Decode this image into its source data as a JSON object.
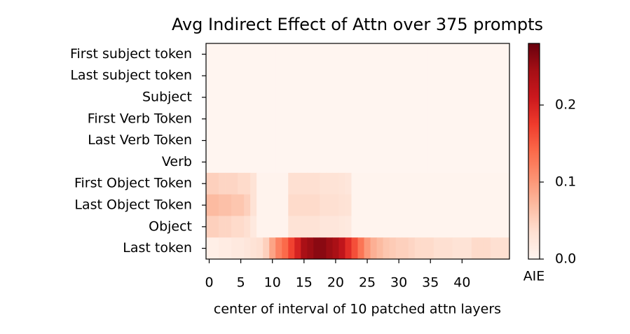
{
  "chart_data": {
    "type": "heatmap",
    "title": "Avg Indirect Effect of Attn over 375 prompts",
    "x_label": "center of interval of 10 patched attn layers",
    "colorbar_label": "AIE",
    "rows": [
      "First subject token",
      "Last subject token",
      "Subject",
      "First Verb Token",
      "Last Verb Token",
      "Verb",
      "First Object Token",
      "Last Object Token",
      "Object",
      "Last token"
    ],
    "xlim": [
      -0.5,
      47.5
    ],
    "xticks": [
      0,
      5,
      10,
      15,
      20,
      25,
      30,
      35,
      40
    ],
    "zlim": [
      0,
      0.28
    ],
    "zticks": [
      {
        "value": 0,
        "label": "0.0"
      },
      {
        "value": 0.1,
        "label": "0.1"
      },
      {
        "value": 0.2,
        "label": "0.2"
      }
    ],
    "colorscale": [
      "#fff5f0",
      "#fee0d2",
      "#fcbba1",
      "#fc9272",
      "#fb6a4a",
      "#ef3b2c",
      "#cb181d",
      "#a50f15",
      "#67000d"
    ],
    "z": [
      [
        0,
        0,
        0,
        0,
        0,
        0,
        0,
        0,
        0,
        0,
        0,
        0,
        0,
        0,
        0,
        0,
        0,
        0,
        0,
        0,
        0,
        0,
        0,
        0,
        0,
        0,
        0,
        0,
        0,
        0,
        0,
        0,
        0,
        0,
        0,
        0,
        0,
        0,
        0,
        0,
        0,
        0,
        0,
        0,
        0,
        0,
        0,
        0
      ],
      [
        0,
        0,
        0,
        0,
        0,
        0,
        0,
        0,
        0,
        0,
        0,
        0,
        0,
        0,
        0,
        0,
        0,
        0,
        0,
        0,
        0,
        0,
        0,
        0,
        0,
        0,
        0,
        0,
        0,
        0,
        0,
        0,
        0,
        0,
        0,
        0,
        0,
        0,
        0,
        0,
        0,
        0,
        0,
        0,
        0,
        0,
        0,
        0
      ],
      [
        0,
        0,
        0,
        0,
        0,
        0,
        0,
        0,
        0,
        0,
        0,
        0,
        0,
        0,
        0,
        0,
        0,
        0,
        0,
        0,
        0,
        0,
        0,
        0,
        0,
        0,
        0,
        0,
        0,
        0,
        0,
        0,
        0,
        0,
        0,
        0,
        0,
        0,
        0,
        0,
        0,
        0,
        0,
        0,
        0,
        0,
        0,
        0
      ],
      [
        0,
        0,
        0,
        0,
        0,
        0,
        0,
        0,
        0,
        0,
        0,
        0,
        0,
        0,
        0,
        0,
        0,
        0,
        0,
        0,
        0,
        0,
        0,
        0,
        0,
        0,
        0,
        0,
        0,
        0,
        0,
        0,
        0,
        0,
        0,
        0,
        0,
        0,
        0,
        0,
        0,
        0,
        0,
        0,
        0,
        0,
        0,
        0
      ],
      [
        0,
        0,
        0,
        0,
        0,
        0,
        0,
        0,
        0,
        0,
        0,
        0,
        0,
        0,
        0,
        0,
        0,
        0,
        0,
        0,
        0,
        0,
        0,
        0,
        0,
        0,
        0,
        0,
        0,
        0,
        0,
        0,
        0,
        0,
        0,
        0,
        0,
        0,
        0,
        0,
        0,
        0,
        0,
        0,
        0,
        0,
        0,
        0
      ],
      [
        0,
        0,
        0,
        0,
        0,
        0,
        0,
        0,
        0,
        0,
        0,
        0,
        0,
        0,
        0,
        0,
        0,
        0,
        0,
        0,
        0,
        0,
        0,
        0,
        0,
        0,
        0,
        0,
        0,
        0,
        0,
        0,
        0,
        0,
        0,
        0,
        0,
        0,
        0,
        0,
        0,
        0,
        0,
        0,
        0,
        0,
        0,
        0
      ],
      [
        0.05,
        0.05,
        0.045,
        0.045,
        0.045,
        0.04,
        0.04,
        0.03,
        0.003,
        0.003,
        0.003,
        0.003,
        0.003,
        0.035,
        0.035,
        0.035,
        0.035,
        0.035,
        0.03,
        0.03,
        0.03,
        0.028,
        0.025,
        0.002,
        0.002,
        0.002,
        0.002,
        0.002,
        0.002,
        0.002,
        0.002,
        0.002,
        0.002,
        0.002,
        0.002,
        0.002,
        0.002,
        0.002,
        0.002,
        0.002,
        0.002,
        0.002,
        0.002,
        0.002,
        0.002,
        0.002,
        0.002,
        0.002
      ],
      [
        0.07,
        0.07,
        0.065,
        0.065,
        0.06,
        0.06,
        0.05,
        0.03,
        0.003,
        0.003,
        0.003,
        0.003,
        0.003,
        0.04,
        0.04,
        0.04,
        0.04,
        0.04,
        0.035,
        0.035,
        0.035,
        0.032,
        0.03,
        0.002,
        0.002,
        0.002,
        0.002,
        0.002,
        0.002,
        0.002,
        0.002,
        0.002,
        0.002,
        0.002,
        0.002,
        0.002,
        0.002,
        0.002,
        0.002,
        0.002,
        0.002,
        0.002,
        0.002,
        0.002,
        0.002,
        0.002,
        0.002,
        0.002
      ],
      [
        0.05,
        0.05,
        0.045,
        0.045,
        0.04,
        0.04,
        0.035,
        0.02,
        0.003,
        0.003,
        0.003,
        0.003,
        0.003,
        0.03,
        0.03,
        0.03,
        0.03,
        0.03,
        0.025,
        0.025,
        0.025,
        0.022,
        0.02,
        0.002,
        0.002,
        0.002,
        0.002,
        0.002,
        0.002,
        0.002,
        0.002,
        0.002,
        0.002,
        0.002,
        0.002,
        0.002,
        0.002,
        0.002,
        0.002,
        0.002,
        0.002,
        0.002,
        0.002,
        0.002,
        0.002,
        0.002,
        0.002,
        0.002
      ],
      [
        0.01,
        0.01,
        0.015,
        0.015,
        0.02,
        0.02,
        0.025,
        0.03,
        0.035,
        0.05,
        0.09,
        0.12,
        0.14,
        0.17,
        0.2,
        0.24,
        0.25,
        0.26,
        0.26,
        0.25,
        0.24,
        0.22,
        0.19,
        0.16,
        0.13,
        0.1,
        0.08,
        0.07,
        0.06,
        0.055,
        0.05,
        0.05,
        0.045,
        0.04,
        0.04,
        0.04,
        0.035,
        0.035,
        0.035,
        0.03,
        0.03,
        0.03,
        0.04,
        0.04,
        0.04,
        0.035,
        0.035,
        0.035
      ]
    ]
  }
}
